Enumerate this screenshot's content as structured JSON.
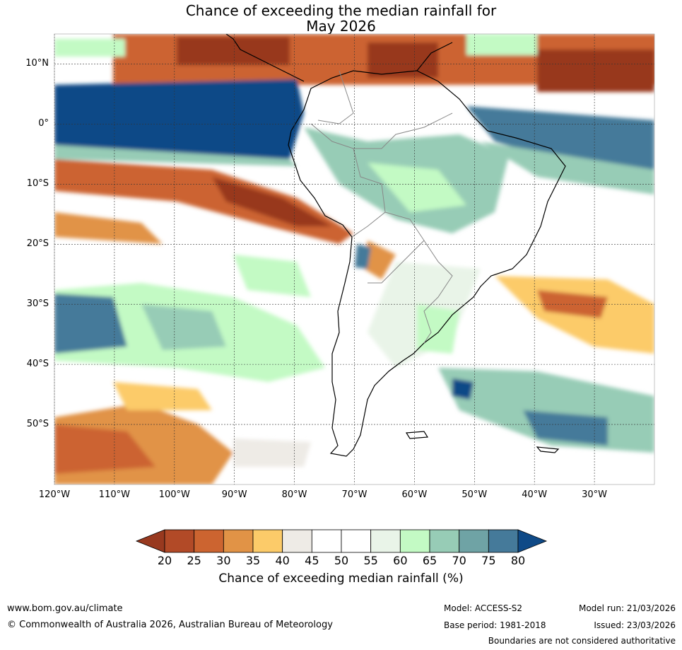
{
  "title": {
    "line1": "Chance of exceeding the median rainfall for",
    "line2": "May 2026"
  },
  "map": {
    "lon_range": [
      -120,
      -20
    ],
    "lat_range": [
      -60,
      15
    ],
    "lat_labels": [
      {
        "lat": 10,
        "text": "10°N"
      },
      {
        "lat": 0,
        "text": "0°"
      },
      {
        "lat": -10,
        "text": "10°S"
      },
      {
        "lat": -20,
        "text": "20°S"
      },
      {
        "lat": -30,
        "text": "30°S"
      },
      {
        "lat": -40,
        "text": "40°S"
      },
      {
        "lat": -50,
        "text": "50°S"
      }
    ],
    "lon_labels": [
      {
        "lon": -120,
        "text": "120°W"
      },
      {
        "lon": -110,
        "text": "110°W"
      },
      {
        "lon": -100,
        "text": "100°W"
      },
      {
        "lon": -90,
        "text": "90°W"
      },
      {
        "lon": -80,
        "text": "80°W"
      },
      {
        "lon": -70,
        "text": "70°W"
      },
      {
        "lon": -60,
        "text": "60°W"
      },
      {
        "lon": -50,
        "text": "50°W"
      },
      {
        "lon": -40,
        "text": "40°W"
      },
      {
        "lon": -30,
        "text": "30°W"
      }
    ]
  },
  "colorbar": {
    "ticks": [
      "20",
      "25",
      "30",
      "35",
      "40",
      "45",
      "50",
      "55",
      "60",
      "65",
      "70",
      "75",
      "80"
    ],
    "colors": [
      "#98391f",
      "#b24a27",
      "#cc6430",
      "#e19346",
      "#fccb69",
      "#eeebe6",
      "#ffffff",
      "#ffffff",
      "#e9f4e8",
      "#c3fac4",
      "#97ccb6",
      "#6fa3a5",
      "#457a9a",
      "#0f4a87"
    ],
    "label": "Chance of exceeding median rainfall (%)"
  },
  "footer": {
    "website": "www.bom.gov.au/climate",
    "copyright": "© Commonwealth of Australia 2026, Australian Bureau of Meteorology",
    "model": "Model: ACCESS-S2",
    "base_period": "Base period: 1981-2018",
    "model_run": "Model run: 21/03/2026",
    "issued": "Issued: 23/03/2026",
    "disclaimer": "Boundaries are not considered authoritative"
  }
}
